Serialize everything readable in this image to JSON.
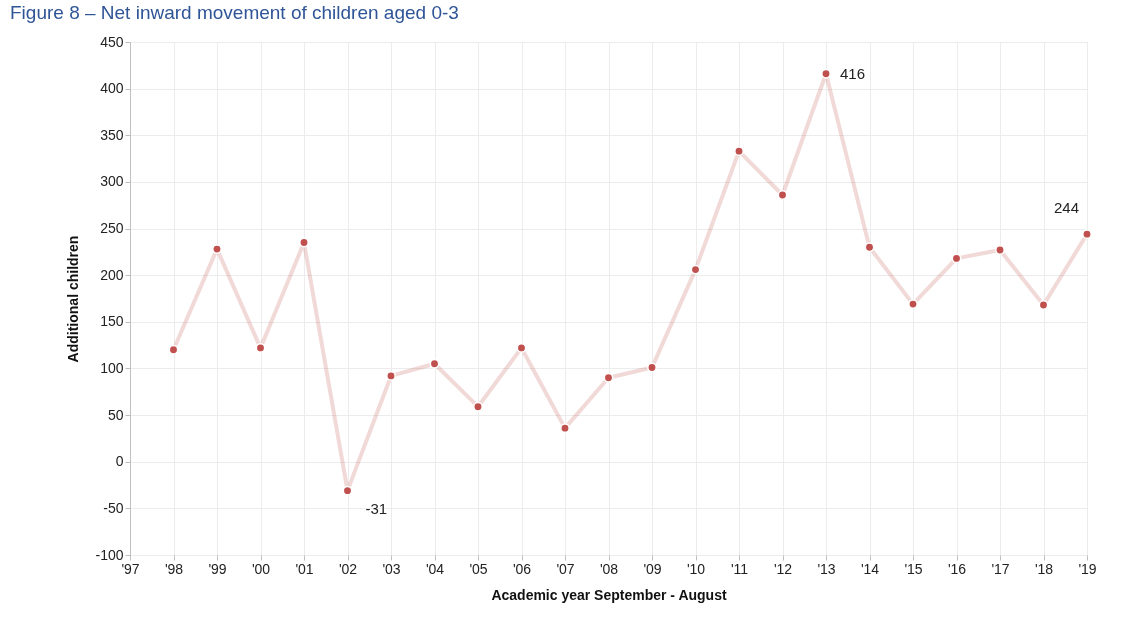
{
  "chart_data": {
    "type": "line",
    "title": "Figure 8 – Net inward movement of children aged 0-3",
    "xlabel": "Academic year September - August",
    "ylabel": "Additional children",
    "categories": [
      "'97",
      "'98",
      "'99",
      "'00",
      "'01",
      "'02",
      "'03",
      "'04",
      "'05",
      "'06",
      "'07",
      "'08",
      "'09",
      "'10",
      "'11",
      "'12",
      "'13",
      "'14",
      "'15",
      "'16",
      "'17",
      "'18",
      "'19"
    ],
    "series": [
      {
        "color": "#c0504d",
        "values": [
          null,
          120,
          228,
          122,
          235,
          -31,
          92,
          105,
          59,
          122,
          36,
          90,
          101,
          206,
          333,
          286,
          416,
          230,
          169,
          218,
          227,
          168,
          244
        ],
        "value_labels": [
          null,
          null,
          null,
          null,
          null,
          "-31",
          null,
          null,
          null,
          null,
          null,
          null,
          null,
          null,
          null,
          null,
          "416",
          null,
          null,
          null,
          null,
          null,
          "244"
        ]
      }
    ],
    "ylim": [
      -100,
      450
    ],
    "yticks": [
      -100,
      -50,
      0,
      50,
      100,
      150,
      200,
      250,
      300,
      350,
      400,
      450
    ],
    "grid": true,
    "marker": "circle",
    "line_style": "solid"
  }
}
